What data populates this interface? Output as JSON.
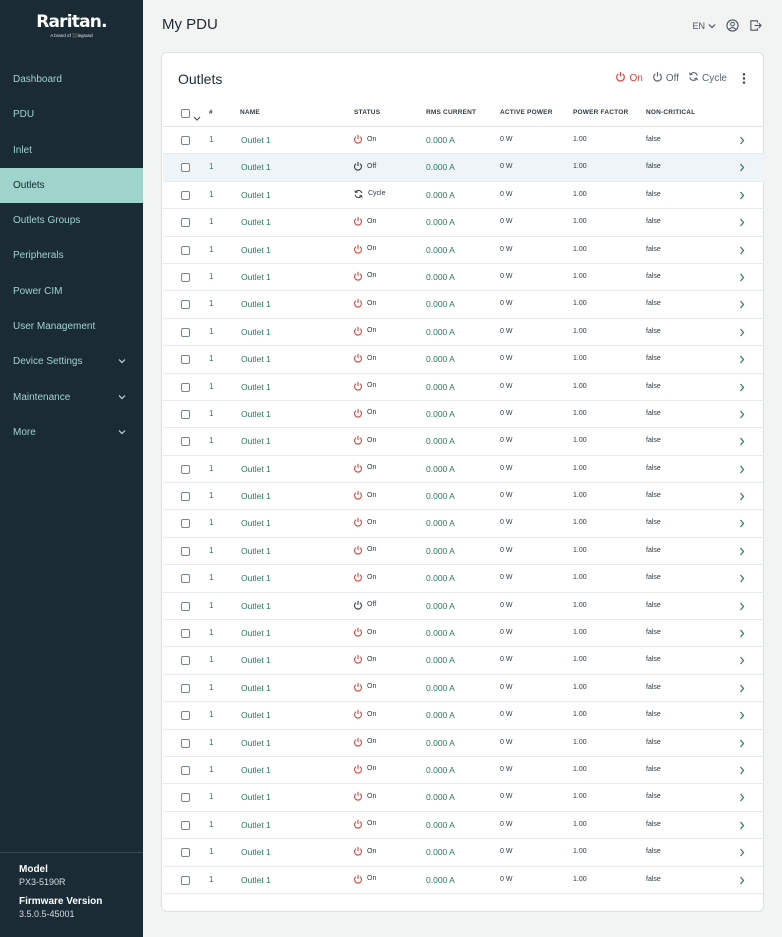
{
  "brand": {
    "name": "Raritan.",
    "subtitle": "A brand of ⬛legrand"
  },
  "nav": [
    {
      "label": "Dashboard",
      "active": false,
      "expandable": false
    },
    {
      "label": "PDU",
      "active": false,
      "expandable": false
    },
    {
      "label": "Inlet",
      "active": false,
      "expandable": false
    },
    {
      "label": "Outlets",
      "active": true,
      "expandable": false
    },
    {
      "label": "Outlets Groups",
      "active": false,
      "expandable": false
    },
    {
      "label": "Peripherals",
      "active": false,
      "expandable": false
    },
    {
      "label": "Power CIM",
      "active": false,
      "expandable": false
    },
    {
      "label": "User Management",
      "active": false,
      "expandable": false
    },
    {
      "label": "Device Settings",
      "active": false,
      "expandable": true
    },
    {
      "label": "Maintenance",
      "active": false,
      "expandable": true
    },
    {
      "label": "More",
      "active": false,
      "expandable": true
    }
  ],
  "device": {
    "model_label": "Model",
    "model": "PX3-5190R",
    "firmware_label": "Firmware Version",
    "firmware": "3.5.0.5-45001"
  },
  "header": {
    "title": "My PDU",
    "language": "EN"
  },
  "card": {
    "title": "Outlets",
    "actions": {
      "on": "On",
      "off": "Off",
      "cycle": "Cycle"
    }
  },
  "table": {
    "columns": {
      "number": "#",
      "name": "NAME",
      "status": "STATUS",
      "rms_current": "RMS CURRENT",
      "active_power": "ACTIVE POWER",
      "power_factor": "POWER FACTOR",
      "non_critical": "NON-CRITICAL"
    },
    "rows": [
      {
        "number": "1",
        "name": "Outlet 1",
        "status": "On",
        "current": "0.000 A",
        "power": "0 W",
        "pf": "1.00",
        "noncrit": "false"
      },
      {
        "number": "1",
        "name": "Outlet 1",
        "status": "Off",
        "current": "0.000 A",
        "power": "0 W",
        "pf": "1.00",
        "noncrit": "false"
      },
      {
        "number": "1",
        "name": "Outlet 1",
        "status": "Cycle",
        "current": "0.000 A",
        "power": "0 W",
        "pf": "1.00",
        "noncrit": "false"
      },
      {
        "number": "1",
        "name": "Outlet 1",
        "status": "On",
        "current": "0.000 A",
        "power": "0 W",
        "pf": "1.00",
        "noncrit": "false"
      },
      {
        "number": "1",
        "name": "Outlet 1",
        "status": "On",
        "current": "0.000 A",
        "power": "0 W",
        "pf": "1.00",
        "noncrit": "false"
      },
      {
        "number": "1",
        "name": "Outlet 1",
        "status": "On",
        "current": "0.000 A",
        "power": "0 W",
        "pf": "1.00",
        "noncrit": "false"
      },
      {
        "number": "1",
        "name": "Outlet 1",
        "status": "On",
        "current": "0.000 A",
        "power": "0 W",
        "pf": "1.00",
        "noncrit": "false"
      },
      {
        "number": "1",
        "name": "Outlet 1",
        "status": "On",
        "current": "0.000 A",
        "power": "0 W",
        "pf": "1.00",
        "noncrit": "false"
      },
      {
        "number": "1",
        "name": "Outlet 1",
        "status": "On",
        "current": "0.000 A",
        "power": "0 W",
        "pf": "1.00",
        "noncrit": "false"
      },
      {
        "number": "1",
        "name": "Outlet 1",
        "status": "On",
        "current": "0.000 A",
        "power": "0 W",
        "pf": "1.00",
        "noncrit": "false"
      },
      {
        "number": "1",
        "name": "Outlet 1",
        "status": "On",
        "current": "0.000 A",
        "power": "0 W",
        "pf": "1.00",
        "noncrit": "false"
      },
      {
        "number": "1",
        "name": "Outlet 1",
        "status": "On",
        "current": "0.000 A",
        "power": "0 W",
        "pf": "1.00",
        "noncrit": "false"
      },
      {
        "number": "1",
        "name": "Outlet 1",
        "status": "On",
        "current": "0.000 A",
        "power": "0 W",
        "pf": "1.00",
        "noncrit": "false"
      },
      {
        "number": "1",
        "name": "Outlet 1",
        "status": "On",
        "current": "0.000 A",
        "power": "0 W",
        "pf": "1.00",
        "noncrit": "false"
      },
      {
        "number": "1",
        "name": "Outlet 1",
        "status": "On",
        "current": "0.000 A",
        "power": "0 W",
        "pf": "1.00",
        "noncrit": "false"
      },
      {
        "number": "1",
        "name": "Outlet 1",
        "status": "On",
        "current": "0.000 A",
        "power": "0 W",
        "pf": "1.00",
        "noncrit": "false"
      },
      {
        "number": "1",
        "name": "Outlet 1",
        "status": "On",
        "current": "0.000 A",
        "power": "0 W",
        "pf": "1.00",
        "noncrit": "false"
      },
      {
        "number": "1",
        "name": "Outlet 1",
        "status": "Off",
        "current": "0.000 A",
        "power": "0 W",
        "pf": "1.00",
        "noncrit": "false"
      },
      {
        "number": "1",
        "name": "Outlet 1",
        "status": "On",
        "current": "0.000 A",
        "power": "0 W",
        "pf": "1.00",
        "noncrit": "false"
      },
      {
        "number": "1",
        "name": "Outlet 1",
        "status": "On",
        "current": "0.000 A",
        "power": "0 W",
        "pf": "1.00",
        "noncrit": "false"
      },
      {
        "number": "1",
        "name": "Outlet 1",
        "status": "On",
        "current": "0.000 A",
        "power": "0 W",
        "pf": "1.00",
        "noncrit": "false"
      },
      {
        "number": "1",
        "name": "Outlet 1",
        "status": "On",
        "current": "0.000 A",
        "power": "0 W",
        "pf": "1.00",
        "noncrit": "false"
      },
      {
        "number": "1",
        "name": "Outlet 1",
        "status": "On",
        "current": "0.000 A",
        "power": "0 W",
        "pf": "1.00",
        "noncrit": "false"
      },
      {
        "number": "1",
        "name": "Outlet 1",
        "status": "On",
        "current": "0.000 A",
        "power": "0 W",
        "pf": "1.00",
        "noncrit": "false"
      },
      {
        "number": "1",
        "name": "Outlet 1",
        "status": "On",
        "current": "0.000 A",
        "power": "0 W",
        "pf": "1.00",
        "noncrit": "false"
      },
      {
        "number": "1",
        "name": "Outlet 1",
        "status": "On",
        "current": "0.000 A",
        "power": "0 W",
        "pf": "1.00",
        "noncrit": "false"
      },
      {
        "number": "1",
        "name": "Outlet 1",
        "status": "On",
        "current": "0.000 A",
        "power": "0 W",
        "pf": "1.00",
        "noncrit": "false"
      },
      {
        "number": "1",
        "name": "Outlet 1",
        "status": "On",
        "current": "0.000 A",
        "power": "0 W",
        "pf": "1.00",
        "noncrit": "false"
      }
    ]
  },
  "colors": {
    "sidebar_bg": "#1a2b35",
    "accent": "#9fd4cc",
    "link": "#2b7a5e",
    "power_on": "#d64541",
    "neutral": "#5b6670"
  },
  "icons": {
    "on": "power-icon",
    "off": "power-icon",
    "cycle": "cycle-icon",
    "user": "user-icon",
    "logout": "logout-icon",
    "more": "more-vertical-icon",
    "row_chevron": "chevron-right-icon",
    "nav_chevron": "chevron-down-icon"
  }
}
